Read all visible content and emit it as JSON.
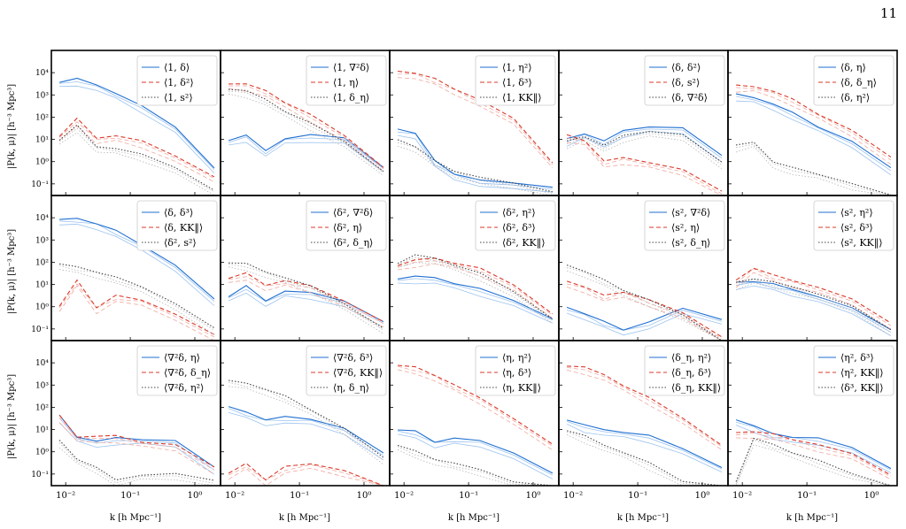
{
  "page_number": "11",
  "colors": {
    "blue": "#1f6fd1",
    "red": "#d93b2b",
    "gray": "#444444"
  },
  "axis_labels": {
    "x": "k [h Mpc⁻¹]",
    "y": "|P(k, μ)| [h⁻³ Mpc³]"
  },
  "chart_data": {
    "type": "line",
    "x_scale": "log",
    "y_scale": "log",
    "xlim": [
      0.006,
      2.5
    ],
    "ylim": [
      0.03,
      100000
    ],
    "x_ticks": [
      "10⁻²",
      "10⁻¹",
      "10⁰"
    ],
    "y_ticks": [
      "10⁻¹",
      "10⁰",
      "10¹",
      "10²",
      "10³",
      "10⁴"
    ],
    "panels": [
      {
        "legend": [
          "⟨1, δ⟩",
          "⟨1, δ²⟩",
          "⟨1, s²⟩"
        ],
        "profiles": [
          {
            "y": [
              4000,
              5000,
              3000,
              1200,
              300,
              40,
              0.5
            ]
          },
          {
            "y": [
              15,
              80,
              12,
              15,
              8,
              2,
              0.2
            ]
          },
          {
            "y": [
              10,
              40,
              5,
              4,
              2,
              0.6,
              0.05
            ]
          }
        ]
      },
      {
        "legend": [
          "⟨1, ∇²δ⟩",
          "⟨1, η⟩",
          "⟨1, δ_η⟩"
        ],
        "profiles": [
          {
            "y": [
              10,
              15,
              3,
              12,
              15,
              12,
              0.6
            ]
          },
          {
            "y": [
              3500,
              3000,
              1500,
              500,
              120,
              15,
              0.6
            ]
          },
          {
            "y": [
              2000,
              1500,
              600,
              200,
              50,
              8,
              0.4
            ]
          }
        ]
      },
      {
        "legend": [
          "⟨1, η²⟩",
          "⟨1, δ³⟩",
          "⟨1, KK‖⟩"
        ],
        "profiles": [
          {
            "y": [
              30,
              20,
              1,
              0.3,
              0.15,
              0.1,
              0.08
            ]
          },
          {
            "y": [
              12000,
              10000,
              5000,
              2000,
              600,
              80,
              1
            ]
          },
          {
            "y": [
              10,
              5,
              1,
              0.4,
              0.2,
              0.1,
              0.05
            ]
          }
        ]
      },
      {
        "legend": [
          "⟨δ, δ²⟩",
          "⟨δ, s²⟩",
          "⟨δ, ∇²δ⟩"
        ],
        "profiles": [
          {
            "y": [
              10,
              20,
              8,
              25,
              40,
              30,
              2
            ]
          },
          {
            "y": [
              15,
              10,
              1,
              1.5,
              1,
              0.4,
              0.05
            ]
          },
          {
            "y": [
              8,
              15,
              5,
              15,
              25,
              15,
              1
            ]
          }
        ]
      },
      {
        "legend": [
          "⟨δ, η⟩",
          "⟨δ, δ_η⟩",
          "⟨δ, η²⟩"
        ],
        "profiles": [
          {
            "y": [
              1000,
              800,
              400,
              150,
              40,
              8,
              0.5
            ]
          },
          {
            "y": [
              2500,
              2500,
              1500,
              600,
              150,
              25,
              1.5
            ]
          },
          {
            "y": [
              5,
              8,
              1,
              0.5,
              0.3,
              0.1,
              0.03
            ]
          }
        ]
      },
      {
        "legend": [
          "⟨δ, δ³⟩",
          "⟨δ, KK‖⟩",
          "⟨δ², s²⟩"
        ],
        "profiles": [
          {
            "y": [
              8000,
              9000,
              6000,
              2500,
              600,
              80,
              2
            ]
          },
          {
            "y": [
              1,
              15,
              1,
              3,
              2,
              0.5,
              0.05
            ]
          },
          {
            "y": [
              80,
              60,
              40,
              20,
              8,
              1.5,
              0.1
            ]
          }
        ]
      },
      {
        "legend": [
          "⟨δ², ∇²δ⟩",
          "⟨δ², η⟩",
          "⟨δ², δ_η⟩"
        ],
        "profiles": [
          {
            "y": [
              3,
              8,
              2,
              5,
              4,
              2,
              0.2
            ]
          },
          {
            "y": [
              20,
              30,
              10,
              15,
              8,
              2,
              0.2
            ]
          },
          {
            "y": [
              100,
              80,
              40,
              20,
              8,
              1.5,
              0.1
            ]
          }
        ]
      },
      {
        "legend": [
          "⟨δ², η²⟩",
          "⟨δ², δ³⟩",
          "⟨δ², KK‖⟩"
        ],
        "profiles": [
          {
            "y": [
              20,
              22,
              20,
              12,
              6,
              2,
              0.3
            ]
          },
          {
            "y": [
              80,
              120,
              150,
              100,
              50,
              10,
              0.5
            ]
          },
          {
            "y": [
              100,
              200,
              150,
              80,
              30,
              5,
              0.3
            ]
          }
        ]
      },
      {
        "legend": [
          "⟨s², ∇²δ⟩",
          "⟨s², η⟩",
          "⟨s², δ_η⟩"
        ],
        "profiles": [
          {
            "y": [
              1,
              0.5,
              0.2,
              0.1,
              0.2,
              0.8,
              0.3
            ]
          },
          {
            "y": [
              15,
              8,
              3,
              5,
              2,
              0.5,
              0.05
            ]
          },
          {
            "y": [
              80,
              40,
              15,
              6,
              2,
              0.4,
              0.03
            ]
          }
        ]
      },
      {
        "legend": [
          "⟨s², η²⟩",
          "⟨s², δ³⟩",
          "⟨s², KK‖⟩"
        ],
        "profiles": [
          {
            "y": [
              12,
              15,
              10,
              6,
              3,
              0.8,
              0.1
            ]
          },
          {
            "y": [
              15,
              60,
              25,
              15,
              8,
              2,
              0.2
            ]
          },
          {
            "y": [
              12,
              20,
              12,
              8,
              4,
              1,
              0.1
            ]
          }
        ]
      },
      {
        "legend": [
          "⟨∇²δ, η⟩",
          "⟨∇²δ, δ_η⟩",
          "⟨∇²δ, η²⟩"
        ],
        "profiles": [
          {
            "y": [
              40,
              5,
              3,
              4,
              4,
              3,
              0.2
            ]
          },
          {
            "y": [
              40,
              5,
              5,
              5,
              3,
              2,
              0.2
            ]
          },
          {
            "y": [
              3,
              0.5,
              0.2,
              0.05,
              0.1,
              0.1,
              0.05
            ]
          }
        ]
      },
      {
        "legend": [
          "⟨∇²δ, δ³⟩",
          "⟨∇²δ, KK‖⟩",
          "⟨η, δ_η⟩"
        ],
        "profiles": [
          {
            "y": [
              100,
              60,
              30,
              35,
              30,
              12,
              0.8
            ]
          },
          {
            "y": [
              0.1,
              0.3,
              0.06,
              0.2,
              0.3,
              0.15,
              0.02
            ]
          },
          {
            "y": [
              1500,
              1200,
              700,
              300,
              80,
              12,
              0.5
            ]
          }
        ]
      },
      {
        "legend": [
          "⟨η, η²⟩",
          "⟨η, δ³⟩",
          "⟨η, KK‖⟩"
        ],
        "profiles": [
          {
            "y": [
              10,
              8,
              3,
              4,
              3,
              1,
              0.1
            ]
          },
          {
            "y": [
              8000,
              6000,
              3000,
              1000,
              250,
              35,
              2
            ]
          },
          {
            "y": [
              2,
              1,
              0.5,
              0.3,
              0.15,
              0.05,
              0.02
            ]
          }
        ]
      },
      {
        "legend": [
          "⟨δ_η, η²⟩",
          "⟨δ_η, δ³⟩",
          "⟨δ_η, KK‖⟩"
        ],
        "profiles": [
          {
            "y": [
              30,
              15,
              10,
              8,
              5,
              1.5,
              0.2
            ]
          },
          {
            "y": [
              8000,
              6000,
              3000,
              1000,
              250,
              35,
              2
            ]
          },
          {
            "y": [
              10,
              5,
              2,
              1,
              0.3,
              0.05,
              0.01
            ]
          }
        ]
      },
      {
        "legend": [
          "⟨η², δ³⟩",
          "⟨η², KK‖⟩",
          "⟨δ³, KK‖⟩"
        ],
        "profiles": [
          {
            "y": [
              30,
              15,
              6,
              5,
              4,
              1.5,
              0.2
            ]
          },
          {
            "y": [
              8,
              8,
              6,
              4,
              2,
              0.8,
              0.1
            ]
          },
          {
            "y": [
              0.05,
              4,
              2,
              1,
              0.4,
              0.1,
              0.01
            ]
          }
        ]
      }
    ]
  }
}
